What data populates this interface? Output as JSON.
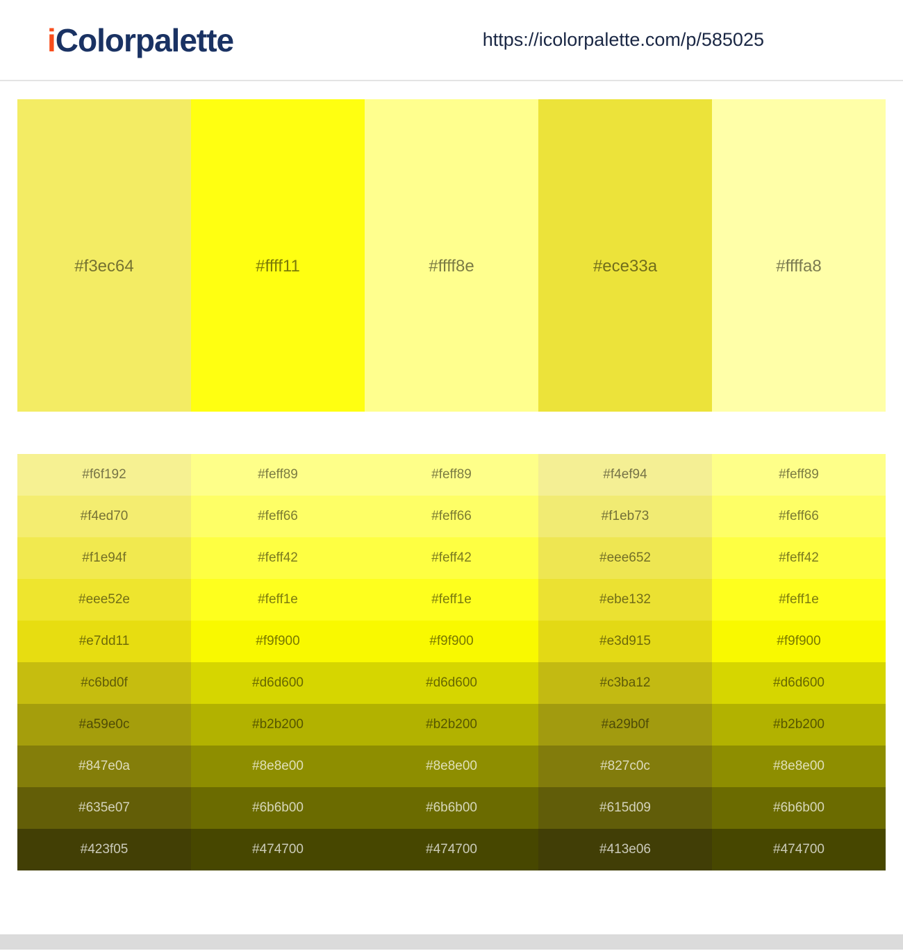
{
  "header": {
    "logo_prefix": "i",
    "logo_rest": "Colorpalette",
    "url": "https://icolorpalette.com/p/585025"
  },
  "palette": {
    "colors": [
      {
        "hex": "#f3ec64"
      },
      {
        "hex": "#ffff11"
      },
      {
        "hex": "#ffff8e"
      },
      {
        "hex": "#ece33a"
      },
      {
        "hex": "#ffffa8"
      }
    ]
  },
  "shades": {
    "rows": [
      [
        "#f6f192",
        "#feff89",
        "#feff89",
        "#f4ef94",
        "#feff89"
      ],
      [
        "#f4ed70",
        "#feff66",
        "#feff66",
        "#f1eb73",
        "#feff66"
      ],
      [
        "#f1e94f",
        "#feff42",
        "#feff42",
        "#eee652",
        "#feff42"
      ],
      [
        "#eee52e",
        "#feff1e",
        "#feff1e",
        "#ebe132",
        "#feff1e"
      ],
      [
        "#e7dd11",
        "#f9f900",
        "#f9f900",
        "#e3d915",
        "#f9f900"
      ],
      [
        "#c6bd0f",
        "#d6d600",
        "#d6d600",
        "#c3ba12",
        "#d6d600"
      ],
      [
        "#a59e0c",
        "#b2b200",
        "#b2b200",
        "#a29b0f",
        "#b2b200"
      ],
      [
        "#847e0a",
        "#8e8e00",
        "#8e8e00",
        "#827c0c",
        "#8e8e00"
      ],
      [
        "#635e07",
        "#6b6b00",
        "#6b6b00",
        "#615d09",
        "#6b6b00"
      ],
      [
        "#423f05",
        "#474700",
        "#474700",
        "#413e06",
        "#474700"
      ]
    ]
  },
  "colors": {
    "logo_accent": "#f94d1c",
    "logo_main": "#1a3263",
    "url_text": "#1a2744",
    "header_border": "#e4e4e4",
    "footer_bar": "#dbdbdb"
  }
}
